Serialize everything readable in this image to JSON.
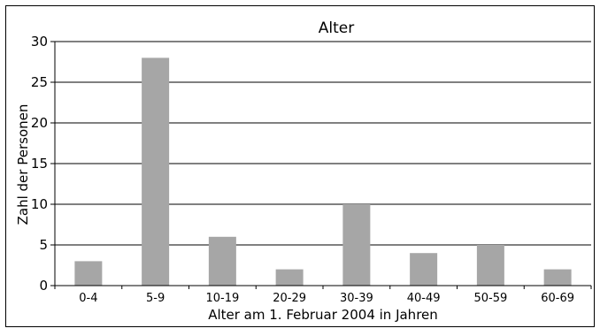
{
  "chart_data": {
    "type": "bar",
    "title": "Alter",
    "xlabel": "Alter am 1. Februar 2004 in Jahren",
    "ylabel": "Zahl der Personen",
    "categories": [
      "0-4",
      "5-9",
      "10-19",
      "20-29",
      "30-39",
      "40-49",
      "50-59",
      "60-69"
    ],
    "values": [
      3,
      28,
      6,
      2,
      10,
      4,
      5,
      2
    ],
    "ylim": [
      0,
      30
    ],
    "yticks": [
      "0",
      "5",
      "10",
      "15",
      "20",
      "25",
      "30"
    ],
    "grid": true,
    "bar_color": "#a6a6a6",
    "grid_color": "#000000"
  }
}
